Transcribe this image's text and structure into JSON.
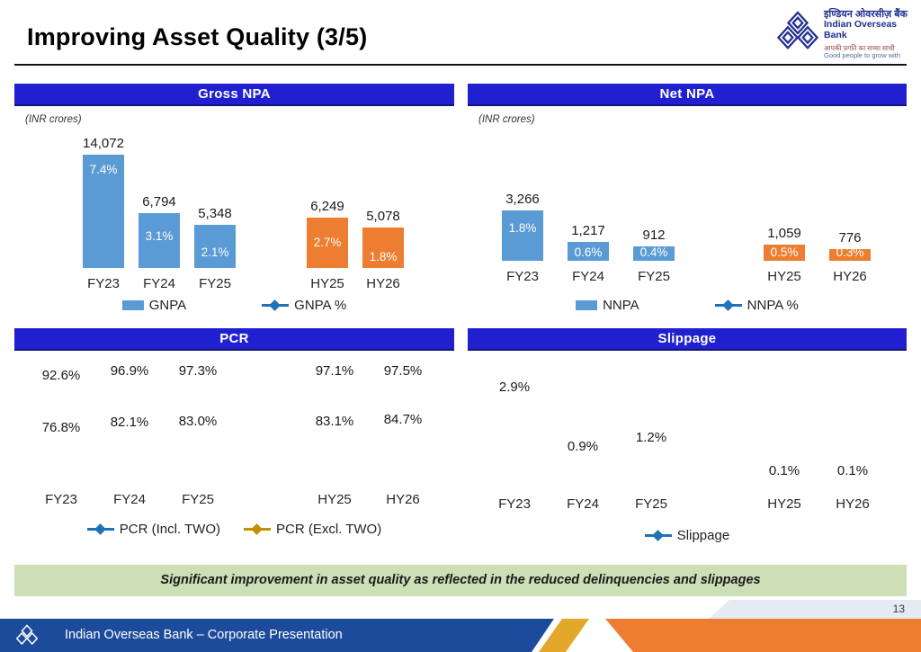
{
  "slide": {
    "title": "Improving Asset Quality (3/5)",
    "page_number": "13",
    "footer_text": "Indian Overseas Bank – Corporate Presentation",
    "banner": "Significant improvement in asset quality as reflected in the reduced delinquencies and slippages"
  },
  "logo": {
    "name_hindi": "इण्डियन ओवरसीज़ बैंक",
    "name_english": "Indian Overseas Bank",
    "tagline_hindi": "आपकी प्रगति का सच्चा साथी",
    "tagline_english": "Good people to grow with"
  },
  "colors": {
    "header_blue": "#2120D0",
    "bar_blue": "#5B9BD5",
    "bar_orange": "#ED7D31",
    "line_blue": "#1F72B8",
    "line_gold": "#BF9000",
    "axis_grey": "#ABABAB",
    "divider_grey": "#7F7F7F",
    "banner_green": "#CCDFB5",
    "footer_blue": "#1D4B9B",
    "footer_gold": "#E3A82B",
    "footer_orange": "#ED7D31"
  },
  "chart_data": [
    {
      "id": "gross_npa",
      "type": "bar",
      "title": "Gross NPA",
      "unit": "(INR crores)",
      "categories": [
        "FY23",
        "FY24",
        "FY25",
        "HY25",
        "HY26"
      ],
      "divider_after": "FY25",
      "legend_position": "bottom",
      "bars": {
        "name": "GNPA",
        "values": [
          14072,
          6794,
          5348,
          6249,
          5078
        ],
        "labels": [
          "14,072",
          "6,794",
          "5,348",
          "6,249",
          "5,078"
        ],
        "pct_labels": [
          "7.4%",
          "3.1%",
          "2.1%",
          "2.7%",
          "1.8%"
        ]
      },
      "line": {
        "name": "GNPA %",
        "values": [
          7.4,
          3.1,
          2.1,
          2.7,
          1.8
        ]
      },
      "legend": [
        "GNPA",
        "GNPA %"
      ]
    },
    {
      "id": "net_npa",
      "type": "bar",
      "title": "Net NPA",
      "unit": "(INR crores)",
      "categories": [
        "FY23",
        "FY24",
        "FY25",
        "HY25",
        "HY26"
      ],
      "divider_after": "FY25",
      "legend_position": "bottom",
      "bars": {
        "name": "NNPA",
        "values": [
          3266,
          1217,
          912,
          1059,
          776
        ],
        "labels": [
          "3,266",
          "1,217",
          "912",
          "1,059",
          "776"
        ],
        "pct_labels": [
          "1.8%",
          "0.6%",
          "0.4%",
          "0.5%",
          "0.3%"
        ]
      },
      "line": {
        "name": "NNPA %",
        "values": [
          1.8,
          0.6,
          0.4,
          0.5,
          0.3
        ]
      },
      "legend": [
        "NNPA",
        "NNPA %"
      ]
    },
    {
      "id": "pcr",
      "type": "line",
      "title": "PCR",
      "categories": [
        "FY23",
        "FY24",
        "FY25",
        "HY25",
        "HY26"
      ],
      "divider_after": "FY25",
      "legend_position": "bottom",
      "series": [
        {
          "name": "PCR (Incl. TWO)",
          "values": [
            92.6,
            96.9,
            97.3,
            97.1,
            97.5
          ],
          "labels": [
            "92.6%",
            "96.9%",
            "97.3%",
            "97.1%",
            "97.5%"
          ]
        },
        {
          "name": "PCR (Excl. TWO)",
          "values": [
            76.8,
            82.1,
            83.0,
            83.1,
            84.7
          ],
          "labels": [
            "76.8%",
            "82.1%",
            "83.0%",
            "83.1%",
            "84.7%"
          ]
        }
      ],
      "legend": [
        "PCR (Incl. TWO)",
        "PCR (Excl. TWO)"
      ]
    },
    {
      "id": "slippage",
      "type": "line",
      "title": "Slippage",
      "categories": [
        "FY23",
        "FY24",
        "FY25",
        "HY25",
        "HY26"
      ],
      "divider_after": "FY25",
      "legend_position": "bottom",
      "series": [
        {
          "name": "Slippage",
          "values": [
            2.9,
            0.9,
            1.2,
            0.1,
            0.1
          ],
          "labels": [
            "2.9%",
            "0.9%",
            "1.2%",
            "0.1%",
            "0.1%"
          ]
        }
      ],
      "legend": [
        "Slippage"
      ]
    }
  ]
}
